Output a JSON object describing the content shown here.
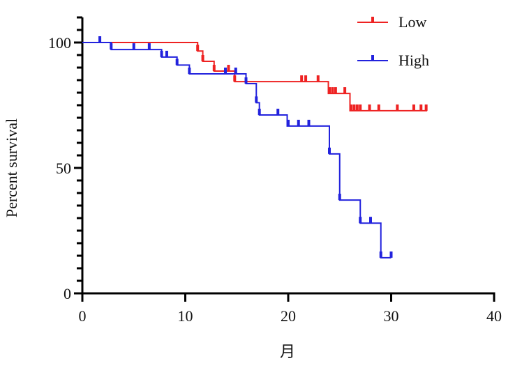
{
  "chart_data": {
    "type": "line",
    "subtype": "kaplan-meier",
    "title": "",
    "xlabel": "月",
    "ylabel": "Percent survival",
    "xlim": [
      0,
      40
    ],
    "ylim": [
      0,
      110
    ],
    "xticks": [
      0,
      10,
      20,
      30,
      40
    ],
    "yticks": [
      0,
      50,
      100
    ],
    "grid": false,
    "legend_position": "top-right",
    "series": [
      {
        "name": "Low",
        "color": "#ee2222",
        "steps": [
          [
            0,
            100
          ],
          [
            11.2,
            96.6
          ],
          [
            11.7,
            92.5
          ],
          [
            12.8,
            88.6
          ],
          [
            14.8,
            84.4
          ],
          [
            23.9,
            79.7
          ],
          [
            26.0,
            72.8
          ],
          [
            33.5,
            72.8
          ]
        ],
        "censored": [
          [
            11.2,
            96.6
          ],
          [
            11.7,
            92.5
          ],
          [
            12.8,
            88.6
          ],
          [
            14.2,
            88.6
          ],
          [
            14.8,
            84.4
          ],
          [
            21.3,
            84.4
          ],
          [
            21.7,
            84.4
          ],
          [
            22.9,
            84.4
          ],
          [
            24.0,
            79.7
          ],
          [
            24.3,
            79.7
          ],
          [
            24.6,
            79.7
          ],
          [
            25.5,
            79.7
          ],
          [
            26.1,
            72.8
          ],
          [
            26.4,
            72.8
          ],
          [
            26.7,
            72.8
          ],
          [
            27.0,
            72.8
          ],
          [
            27.9,
            72.8
          ],
          [
            28.8,
            72.8
          ],
          [
            30.6,
            72.8
          ],
          [
            32.2,
            72.8
          ],
          [
            32.9,
            72.8
          ],
          [
            33.4,
            72.8
          ]
        ]
      },
      {
        "name": "High",
        "color": "#2222dd",
        "steps": [
          [
            0,
            100
          ],
          [
            2.8,
            97.2
          ],
          [
            7.7,
            94.2
          ],
          [
            9.2,
            91
          ],
          [
            10.4,
            87.5
          ],
          [
            15.9,
            83.6
          ],
          [
            16.9,
            76
          ],
          [
            17.2,
            71.1
          ],
          [
            19.9,
            66.7
          ],
          [
            24.0,
            55.6
          ],
          [
            25.0,
            37.2
          ],
          [
            27.0,
            28
          ],
          [
            29.0,
            14.2
          ],
          [
            30.0,
            14.2
          ]
        ],
        "censored": [
          [
            1.7,
            100
          ],
          [
            2.8,
            97.2
          ],
          [
            5.0,
            97.2
          ],
          [
            6.5,
            97.2
          ],
          [
            7.7,
            94.2
          ],
          [
            8.2,
            94.2
          ],
          [
            9.2,
            91
          ],
          [
            10.4,
            87.5
          ],
          [
            13.9,
            87.5
          ],
          [
            14.9,
            87.5
          ],
          [
            15.9,
            83.6
          ],
          [
            16.9,
            76
          ],
          [
            17.2,
            71.1
          ],
          [
            19.0,
            71.1
          ],
          [
            20.0,
            66.7
          ],
          [
            21.0,
            66.7
          ],
          [
            22.0,
            66.7
          ],
          [
            24.0,
            55.6
          ],
          [
            25.0,
            37.2
          ],
          [
            27.0,
            28
          ],
          [
            28.0,
            28
          ],
          [
            29.0,
            14.2
          ],
          [
            30.0,
            14.2
          ]
        ]
      }
    ]
  }
}
